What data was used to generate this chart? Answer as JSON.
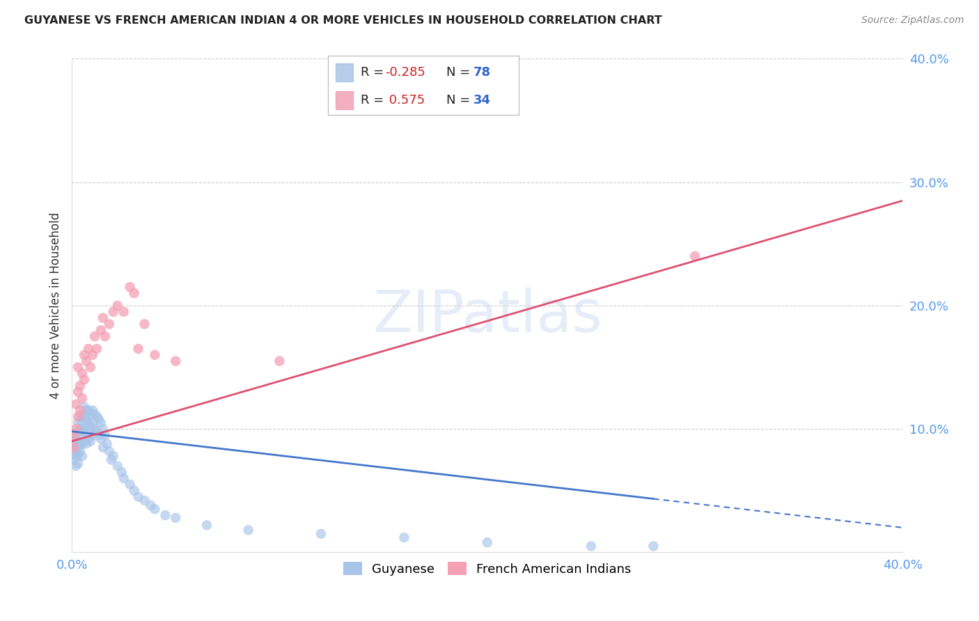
{
  "title": "GUYANESE VS FRENCH AMERICAN INDIAN 4 OR MORE VEHICLES IN HOUSEHOLD CORRELATION CHART",
  "source": "Source: ZipAtlas.com",
  "ylabel": "4 or more Vehicles in Household",
  "xaxis_label_guyanese": "Guyanese",
  "xaxis_label_french": "French American Indians",
  "xlim": [
    0.0,
    0.4
  ],
  "ylim": [
    0.0,
    0.4
  ],
  "ytick_vals": [
    0.0,
    0.1,
    0.2,
    0.3,
    0.4
  ],
  "ytick_labels": [
    "",
    "10.0%",
    "20.0%",
    "30.0%",
    "40.0%"
  ],
  "grid_color": "#cccccc",
  "background_color": "#ffffff",
  "blue_color": "#a8c4e8",
  "pink_color": "#f4a0b5",
  "blue_line_color": "#4477cc",
  "pink_line_color": "#e05070",
  "R_blue": -0.285,
  "N_blue": 78,
  "R_pink": 0.575,
  "N_pink": 34,
  "watermark": "ZIPatlas",
  "blue_line_x0": 0.0,
  "blue_line_y0": 0.098,
  "blue_line_x1": 0.4,
  "blue_line_y1": 0.02,
  "blue_line_solid_end": 0.28,
  "pink_line_x0": 0.0,
  "pink_line_y0": 0.09,
  "pink_line_x1": 0.4,
  "pink_line_y1": 0.285,
  "guyanese_x": [
    0.001,
    0.001,
    0.001,
    0.001,
    0.001,
    0.002,
    0.002,
    0.002,
    0.002,
    0.002,
    0.002,
    0.002,
    0.003,
    0.003,
    0.003,
    0.003,
    0.003,
    0.003,
    0.004,
    0.004,
    0.004,
    0.004,
    0.004,
    0.005,
    0.005,
    0.005,
    0.005,
    0.005,
    0.006,
    0.006,
    0.006,
    0.006,
    0.007,
    0.007,
    0.007,
    0.007,
    0.008,
    0.008,
    0.008,
    0.009,
    0.009,
    0.009,
    0.01,
    0.01,
    0.01,
    0.011,
    0.011,
    0.012,
    0.012,
    0.013,
    0.013,
    0.014,
    0.014,
    0.015,
    0.015,
    0.016,
    0.017,
    0.018,
    0.019,
    0.02,
    0.022,
    0.024,
    0.025,
    0.028,
    0.03,
    0.032,
    0.035,
    0.038,
    0.04,
    0.045,
    0.05,
    0.065,
    0.085,
    0.12,
    0.16,
    0.2,
    0.25,
    0.28
  ],
  "guyanese_y": [
    0.085,
    0.09,
    0.095,
    0.075,
    0.08,
    0.088,
    0.092,
    0.085,
    0.078,
    0.095,
    0.082,
    0.07,
    0.098,
    0.105,
    0.09,
    0.085,
    0.078,
    0.072,
    0.1,
    0.11,
    0.095,
    0.088,
    0.082,
    0.105,
    0.112,
    0.098,
    0.088,
    0.078,
    0.11,
    0.118,
    0.1,
    0.09,
    0.115,
    0.108,
    0.098,
    0.088,
    0.115,
    0.105,
    0.092,
    0.112,
    0.102,
    0.09,
    0.115,
    0.105,
    0.095,
    0.112,
    0.1,
    0.11,
    0.098,
    0.108,
    0.095,
    0.105,
    0.092,
    0.1,
    0.085,
    0.095,
    0.088,
    0.082,
    0.075,
    0.078,
    0.07,
    0.065,
    0.06,
    0.055,
    0.05,
    0.045,
    0.042,
    0.038,
    0.035,
    0.03,
    0.028,
    0.022,
    0.018,
    0.015,
    0.012,
    0.008,
    0.005,
    0.005
  ],
  "french_x": [
    0.001,
    0.001,
    0.002,
    0.002,
    0.003,
    0.003,
    0.003,
    0.004,
    0.004,
    0.005,
    0.005,
    0.006,
    0.006,
    0.007,
    0.008,
    0.009,
    0.01,
    0.011,
    0.012,
    0.014,
    0.015,
    0.016,
    0.018,
    0.02,
    0.022,
    0.025,
    0.028,
    0.03,
    0.032,
    0.035,
    0.04,
    0.05,
    0.1,
    0.3
  ],
  "french_y": [
    0.085,
    0.095,
    0.1,
    0.12,
    0.11,
    0.13,
    0.15,
    0.115,
    0.135,
    0.125,
    0.145,
    0.14,
    0.16,
    0.155,
    0.165,
    0.15,
    0.16,
    0.175,
    0.165,
    0.18,
    0.19,
    0.175,
    0.185,
    0.195,
    0.2,
    0.195,
    0.215,
    0.21,
    0.165,
    0.185,
    0.16,
    0.155,
    0.155,
    0.24
  ]
}
